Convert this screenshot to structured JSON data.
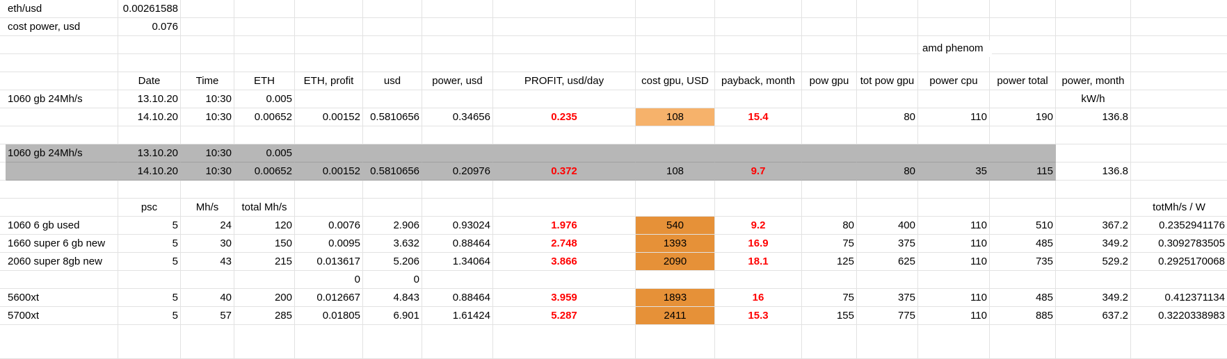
{
  "colors": {
    "gridline": "#e2e2e2",
    "highlight_grey": "#b7b7b7",
    "orange_light": "#f6b26b",
    "orange": "#e69138",
    "profit_red": "#ff0000"
  },
  "rows": [
    {
      "cells": [
        "eth/usd",
        "0.00261588",
        "",
        "",
        "",
        "",
        "",
        "",
        "",
        "",
        "",
        "",
        "",
        "",
        "",
        "",
        ""
      ]
    },
    {
      "cells": [
        "cost power, usd",
        "0.076",
        "",
        "",
        "",
        "",
        "",
        "",
        "",
        "",
        "",
        "",
        "",
        "",
        "",
        "",
        ""
      ]
    },
    {
      "cells": [
        "",
        "",
        "",
        "",
        "",
        "",
        "",
        "",
        "",
        "",
        "",
        "",
        "",
        "",
        "",
        "",
        ""
      ]
    },
    {
      "cells": [
        "",
        "",
        "",
        "",
        "",
        "",
        "",
        "",
        "",
        "",
        "",
        "",
        "",
        "",
        "",
        "",
        ""
      ]
    },
    {
      "cells": [
        "",
        "Date",
        "Time",
        "ETH",
        "ETH, profit",
        "usd",
        "power, usd",
        "PROFIT, usd/day",
        "cost gpu, USD",
        "payback, month",
        "pow gpu",
        "tot pow gpu",
        "power  cpu",
        "power total",
        "power, month",
        "",
        ""
      ]
    },
    {
      "cells": [
        "1060 gb  24Mh/s",
        "13.10.20",
        "10:30",
        "0.005",
        "",
        "",
        "",
        "",
        "",
        "",
        "",
        "",
        "",
        "",
        "kW/h",
        "",
        ""
      ]
    },
    {
      "cells": [
        "",
        "14.10.20",
        "10:30",
        "0.00652",
        "0.00152",
        "0.5810656",
        "0.34656",
        "0.235",
        "108",
        "15.4",
        "",
        "80",
        "110",
        "190",
        "136.8",
        "",
        ""
      ]
    },
    {
      "cells": [
        "",
        "",
        "",
        "",
        "",
        "",
        "",
        "",
        "",
        "",
        "",
        "",
        "",
        "",
        "",
        "",
        ""
      ]
    },
    {
      "cells": [
        "1060 gb  24Mh/s",
        "13.10.20",
        "10:30",
        "0.005",
        "",
        "",
        "",
        "",
        "",
        "",
        "",
        "",
        "",
        "",
        "",
        "",
        ""
      ]
    },
    {
      "cells": [
        "",
        "14.10.20",
        "10:30",
        "0.00652",
        "0.00152",
        "0.5810656",
        "0.20976",
        "0.372",
        "108",
        "9.7",
        "",
        "80",
        "35",
        "115",
        "136.8",
        "",
        ""
      ]
    },
    {
      "cells": [
        "",
        "",
        "",
        "",
        "",
        "",
        "",
        "",
        "",
        "",
        "",
        "",
        "",
        "",
        "",
        "",
        ""
      ]
    },
    {
      "cells": [
        "",
        "psc",
        "Mh/s",
        "total Mh/s",
        "",
        "",
        "",
        "",
        "",
        "",
        "",
        "",
        "",
        "",
        "",
        "totMh/s / W",
        ""
      ]
    },
    {
      "cells": [
        "1060 6 gb used",
        "5",
        "24",
        "120",
        "0.0076",
        "2.906",
        "0.93024",
        "1.976",
        "540",
        "9.2",
        "80",
        "400",
        "110",
        "510",
        "367.2",
        "0.2352941176",
        ""
      ]
    },
    {
      "cells": [
        "1660 super 6 gb new",
        "5",
        "30",
        "150",
        "0.0095",
        "3.632",
        "0.88464",
        "2.748",
        "1393",
        "16.9",
        "75",
        "375",
        "110",
        "485",
        "349.2",
        "0.3092783505",
        ""
      ]
    },
    {
      "cells": [
        "2060 super 8gb new",
        "5",
        "43",
        "215",
        "0.013617",
        "5.206",
        "1.34064",
        "3.866",
        "2090",
        "18.1",
        "125",
        "625",
        "110",
        "735",
        "529.2",
        "0.2925170068",
        ""
      ]
    },
    {
      "cells": [
        "",
        "",
        "",
        "",
        "0",
        "0",
        "",
        "",
        "",
        "",
        "",
        "",
        "",
        "",
        "",
        "",
        ""
      ]
    },
    {
      "cells": [
        "5600xt",
        "5",
        "40",
        "200",
        "0.012667",
        "4.843",
        "0.88464",
        "3.959",
        "1893",
        "16",
        "75",
        "375",
        "110",
        "485",
        "349.2",
        "0.412371134",
        ""
      ]
    },
    {
      "cells": [
        "5700xt",
        "5",
        "57",
        "285",
        "0.01805",
        "6.901",
        "1.61424",
        "5.287",
        "2411",
        "15.3",
        "155",
        "775",
        "110",
        "885",
        "637.2",
        "0.3220338983",
        ""
      ]
    },
    {
      "cells": [
        "",
        "",
        "",
        "",
        "",
        "",
        "",
        "",
        "",
        "",
        "",
        "",
        "",
        "",
        "",
        "",
        ""
      ]
    }
  ],
  "overlay_labels": {
    "amd_phenom": "amd phenom"
  }
}
